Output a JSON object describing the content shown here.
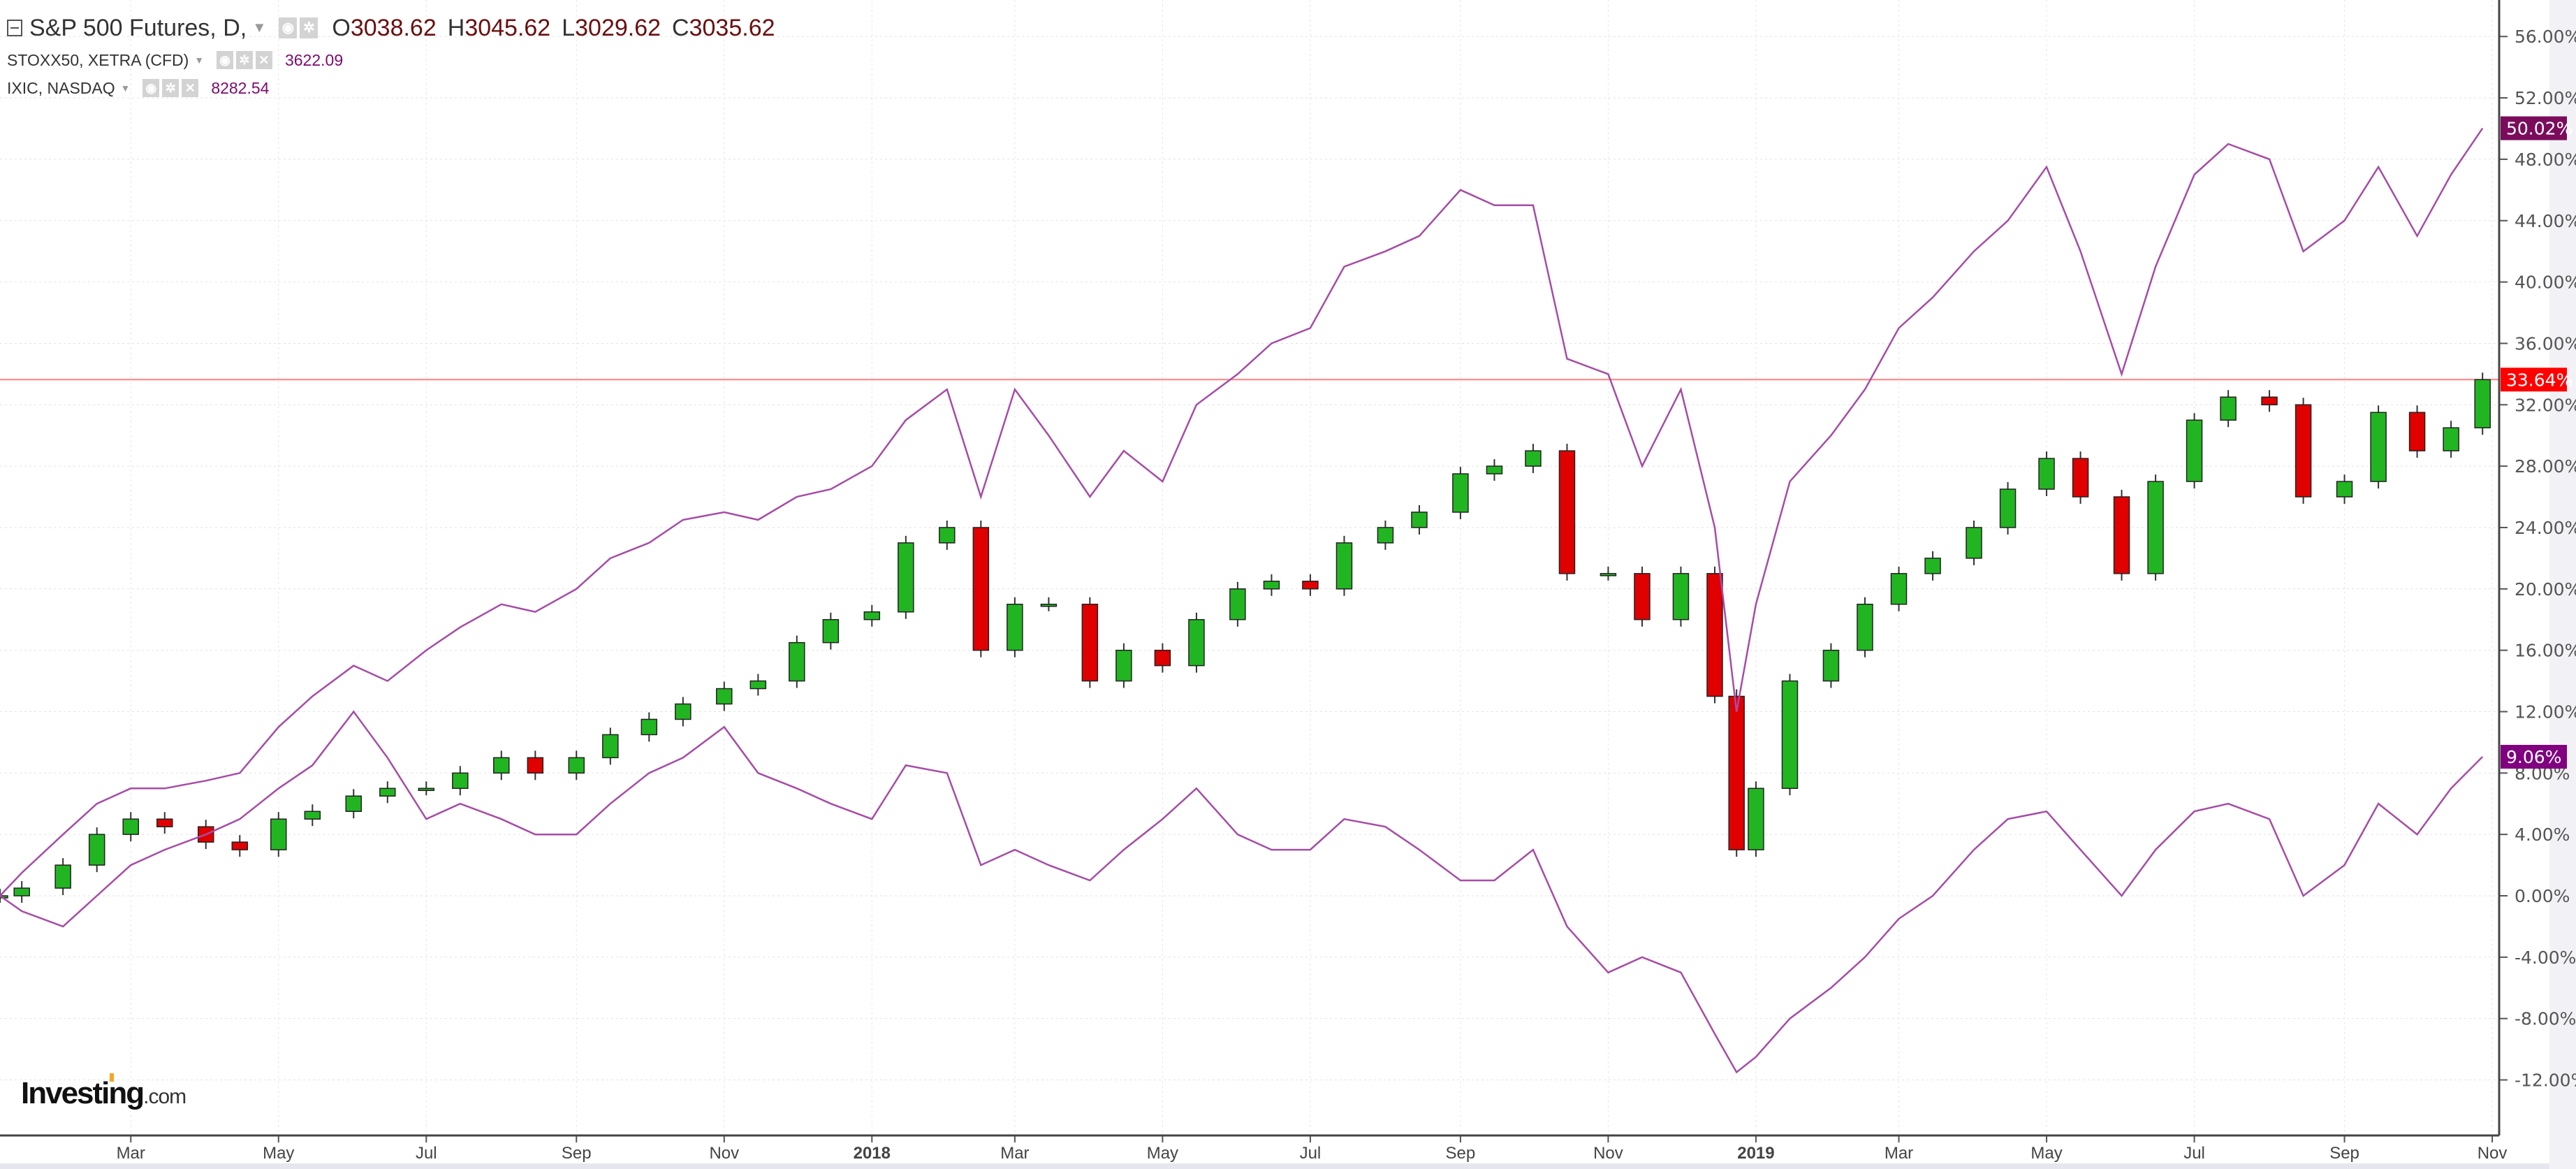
{
  "legend": {
    "main": {
      "name": "S&P 500 Futures, D,",
      "o_label": "O",
      "o": "3038.62",
      "h_label": "H",
      "h": "3045.62",
      "l_label": "L",
      "l": "3029.62",
      "c_label": "C",
      "c": "3035.62"
    },
    "series2": {
      "name": "STOXX50, XETRA (CFD)",
      "value": "3622.09"
    },
    "series3": {
      "name": "IXIC, NASDAQ",
      "value": "8282.54"
    }
  },
  "logo": {
    "main": "Investing",
    "suffix": ".com"
  },
  "chart_data": {
    "type": "line",
    "yaxis": {
      "format": "percent",
      "ylim": [
        -14,
        58
      ],
      "ticks": [
        -12,
        -8,
        -4,
        0,
        4,
        8,
        12,
        16,
        20,
        24,
        28,
        32,
        36,
        40,
        44,
        48,
        52,
        56
      ],
      "tick_labels": [
        "-12.00%",
        "-8.00%",
        "-4.00%",
        "0.00%",
        "4.00%",
        "8.00%",
        "12.00%",
        "16.00%",
        "20.00%",
        "24.00%",
        "28.00%",
        "32.00%",
        "36.00%",
        "40.00%",
        "44.00%",
        "48.00%",
        "52.00%",
        "56.00%"
      ],
      "position": "right"
    },
    "xaxis": {
      "range": [
        "2017-01-06",
        "2019-11-03"
      ],
      "ticks": [
        "2017-03-01",
        "2017-05-01",
        "2017-07-01",
        "2017-09-01",
        "2017-11-01",
        "2018-01-01",
        "2018-03-01",
        "2018-05-01",
        "2018-07-01",
        "2018-09-01",
        "2018-11-01",
        "2019-01-01",
        "2019-03-01",
        "2019-05-01",
        "2019-07-01",
        "2019-09-01",
        "2019-11-01"
      ],
      "tick_labels": [
        "Mar",
        "May",
        "Jul",
        "Sep",
        "Nov",
        "2018",
        "Mar",
        "May",
        "Jul",
        "Sep",
        "Nov",
        "2019",
        "Mar",
        "May",
        "Jul",
        "Sep",
        "Nov"
      ]
    },
    "grid": true,
    "x": [
      "2017-01-06",
      "2017-01-15",
      "2017-02-01",
      "2017-02-15",
      "2017-03-01",
      "2017-03-15",
      "2017-04-01",
      "2017-04-15",
      "2017-05-01",
      "2017-05-15",
      "2017-06-01",
      "2017-06-15",
      "2017-07-01",
      "2017-07-15",
      "2017-08-01",
      "2017-08-15",
      "2017-09-01",
      "2017-09-15",
      "2017-10-01",
      "2017-10-15",
      "2017-11-01",
      "2017-11-15",
      "2017-12-01",
      "2017-12-15",
      "2018-01-01",
      "2018-01-15",
      "2018-02-01",
      "2018-02-15",
      "2018-03-01",
      "2018-03-15",
      "2018-04-01",
      "2018-04-15",
      "2018-05-01",
      "2018-05-15",
      "2018-06-01",
      "2018-06-15",
      "2018-07-01",
      "2018-07-15",
      "2018-08-01",
      "2018-08-15",
      "2018-09-01",
      "2018-09-15",
      "2018-10-01",
      "2018-10-15",
      "2018-11-01",
      "2018-11-15",
      "2018-12-01",
      "2018-12-15",
      "2018-12-24",
      "2019-01-01",
      "2019-01-15",
      "2019-02-01",
      "2019-02-15",
      "2019-03-01",
      "2019-03-15",
      "2019-04-01",
      "2019-04-15",
      "2019-05-01",
      "2019-05-15",
      "2019-06-01",
      "2019-06-15",
      "2019-07-01",
      "2019-07-15",
      "2019-08-01",
      "2019-08-15",
      "2019-09-01",
      "2019-09-15",
      "2019-10-01",
      "2019-10-15",
      "2019-10-28"
    ],
    "series": [
      {
        "key": "spx",
        "style": "candlestick",
        "color_up": "#22b522",
        "color_down": "#e00000",
        "last_label": "33.64%",
        "label_color": "#ff0000",
        "values": [
          0,
          0.5,
          2,
          4,
          5,
          4.5,
          3.5,
          3,
          5,
          5.5,
          6.5,
          7,
          7,
          8,
          9,
          8,
          9,
          10.5,
          11.5,
          12.5,
          13.5,
          14,
          16.5,
          18,
          18.5,
          23,
          24,
          16,
          19,
          19,
          14,
          16,
          15,
          18,
          20,
          20.5,
          20,
          23,
          24,
          25,
          27.5,
          28,
          29,
          21,
          21,
          18,
          21,
          13,
          3,
          7,
          14,
          16,
          19,
          21,
          22,
          24,
          26.5,
          28.5,
          26,
          21,
          27,
          31,
          32.5,
          32,
          26,
          27,
          31.5,
          29,
          30.5,
          33.64
        ]
      },
      {
        "key": "ixic",
        "style": "line",
        "color": "#a64ca6",
        "last_label": "50.02%",
        "label_color": "#7b0c5c",
        "values": [
          0,
          1.5,
          4,
          6,
          7,
          7,
          7.5,
          8,
          11,
          13,
          15,
          14,
          16,
          17.5,
          19,
          18.5,
          20,
          22,
          23,
          24.5,
          25,
          24.5,
          26,
          26.5,
          28,
          31,
          33,
          26,
          33,
          30,
          26,
          29,
          27,
          32,
          34,
          36,
          37,
          41,
          42,
          43,
          46,
          45,
          45,
          35,
          34,
          28,
          33,
          24,
          12,
          19,
          27,
          30,
          33,
          37,
          39,
          42,
          44,
          47.5,
          42,
          34,
          41,
          47,
          49,
          48,
          42,
          44,
          47.5,
          43,
          47,
          50.02
        ]
      },
      {
        "key": "stoxx50",
        "style": "line",
        "color": "#a64ca6",
        "last_label": "9.06%",
        "label_color": "#800080",
        "values": [
          0,
          -1,
          -2,
          0,
          2,
          3,
          4,
          5,
          7,
          8.5,
          12,
          9,
          5,
          6,
          5,
          4,
          4,
          6,
          8,
          9,
          11,
          8,
          7,
          6,
          5,
          8.5,
          8,
          2,
          3,
          2,
          1,
          3,
          5,
          7,
          4,
          3,
          3,
          5,
          4.5,
          3,
          1,
          1,
          3,
          -2,
          -5,
          -4,
          -5,
          -9,
          -11.5,
          -10.5,
          -8,
          -6,
          -4,
          -1.5,
          0,
          3,
          5,
          5.5,
          3,
          0,
          3,
          5.5,
          6,
          5,
          0,
          2,
          6,
          4,
          7,
          9.06
        ]
      }
    ],
    "hline": {
      "value": 33.64,
      "color": "#ff8080"
    }
  }
}
